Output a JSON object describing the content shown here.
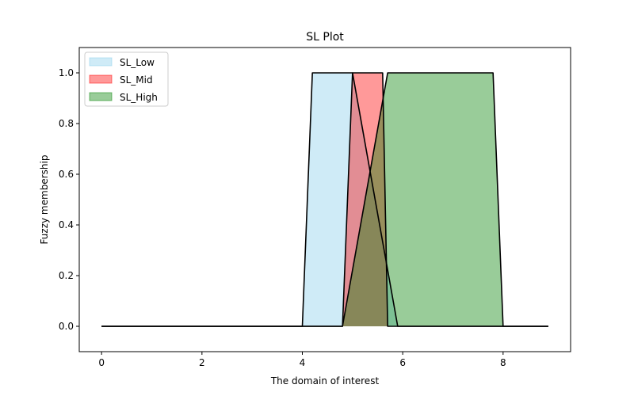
{
  "chart_data": {
    "type": "area",
    "title": "SL Plot",
    "xlabel": "The domain of interest",
    "ylabel": "Fuzzy membership",
    "xlim": [
      -0.445,
      9.345
    ],
    "ylim": [
      -0.1,
      1.1
    ],
    "xticks": [
      0,
      2,
      4,
      6,
      8
    ],
    "yticks": [
      0.0,
      0.2,
      0.4,
      0.6,
      0.8,
      1.0
    ],
    "xtick_labels": [
      "0",
      "2",
      "4",
      "6",
      "8"
    ],
    "ytick_labels": [
      "0.0",
      "0.2",
      "0.4",
      "0.6",
      "0.8",
      "1.0"
    ],
    "grid": false,
    "legend_position": "top-left",
    "x": [
      0.0,
      4.0,
      4.2,
      5.0,
      5.9,
      8.9
    ],
    "series": [
      {
        "name": "SL_Low",
        "color": "#87ceeb",
        "alpha": 0.4,
        "points": [
          [
            0.0,
            0.0
          ],
          [
            4.0,
            0.0
          ],
          [
            4.2,
            1.0
          ],
          [
            5.0,
            1.0
          ],
          [
            5.9,
            0.0
          ],
          [
            8.9,
            0.0
          ]
        ]
      },
      {
        "name": "SL_Mid",
        "color": "#ff0000",
        "alpha": 0.4,
        "points": [
          [
            0.0,
            0.0
          ],
          [
            4.8,
            0.0
          ],
          [
            5.0,
            1.0
          ],
          [
            5.6,
            1.0
          ],
          [
            5.7,
            0.0
          ],
          [
            8.9,
            0.0
          ]
        ],
        "note_hidden": ""
      },
      {
        "name": "SL_High",
        "color": "#008000",
        "alpha": 0.4,
        "points": [
          [
            0.0,
            0.0
          ],
          [
            4.8,
            0.0
          ],
          [
            5.7,
            1.0
          ],
          [
            7.8,
            1.0
          ],
          [
            8.0,
            0.0
          ],
          [
            8.9,
            0.0
          ]
        ]
      }
    ]
  }
}
